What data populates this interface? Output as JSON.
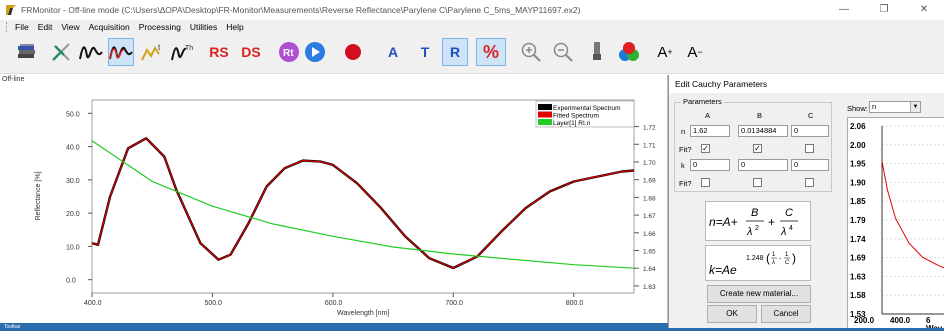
{
  "window": {
    "title": "FRMonitor - Off-line mode (C:\\Users\\ΔΟΡΑ\\Desktop\\FR-Monitor\\Measurements\\Reverse Reflectance\\Parylene C\\Parylene C_5ms_MAYP11697.ex2)",
    "minimize": "—",
    "maximize": "❐",
    "close": "✕"
  },
  "menu": [
    "File",
    "Edit",
    "View",
    "Acquisition",
    "Processing",
    "Utilities",
    "Help"
  ],
  "toolbar": {
    "text_buttons": {
      "rs": "RS",
      "ds": "DS",
      "rt": "Rt",
      "a": "A",
      "t": "T",
      "r": "R",
      "percent": "%",
      "a_plus": "A",
      "a_minus": "A",
      "plus": "+",
      "minus": "−"
    },
    "active": [
      "thickness-fit",
      "reflectance-mode",
      "percent-mode"
    ],
    "colors": {
      "blue_text": "#1f4fbf",
      "red_text": "#d22",
      "active_bg": "#cde4f7"
    }
  },
  "main_plot": {
    "mode_label": "Off-line",
    "chart_data": {
      "type": "line",
      "xlabel": "Wavelength [nm]",
      "ylabel": "Reflectance [%]",
      "xlim": [
        400,
        850
      ],
      "ylim": [
        -4,
        54
      ],
      "y2lim": [
        1.626,
        1.735
      ],
      "xticks": [
        "400.0",
        "500.0",
        "600.0",
        "700.0",
        "800.0"
      ],
      "yticks": [
        "0.0",
        "10.0",
        "20.0",
        "30.0",
        "40.0",
        "50.0"
      ],
      "y2ticks": [
        "1.63",
        "1.64",
        "1.65",
        "1.66",
        "1.67",
        "1.68",
        "1.69",
        "1.70",
        "1.71",
        "1.72"
      ],
      "legend_position": "top-right",
      "series": [
        {
          "name": "Experimental Spectrum",
          "color": "#000000",
          "axis": "left",
          "x": [
            400,
            405,
            415,
            430,
            445,
            460,
            470,
            490,
            505,
            515,
            530,
            545,
            560,
            575,
            590,
            600,
            620,
            640,
            660,
            680,
            700,
            720,
            740,
            760,
            780,
            800,
            820,
            840,
            850
          ],
          "y": [
            11,
            10.5,
            25,
            39.5,
            42.5,
            37,
            27,
            11,
            6,
            7.5,
            17,
            28,
            33.5,
            35.8,
            35.5,
            34.5,
            29,
            21.5,
            13,
            6.5,
            3.5,
            7,
            14.5,
            21.5,
            26.5,
            29.5,
            31,
            32.5,
            32.8
          ]
        },
        {
          "name": "Fitted Spectrum",
          "color": "#e00000",
          "axis": "left",
          "x": [
            400,
            405,
            415,
            430,
            445,
            460,
            470,
            490,
            505,
            515,
            530,
            545,
            560,
            575,
            590,
            600,
            620,
            640,
            660,
            680,
            700,
            720,
            740,
            760,
            780,
            800,
            820,
            840,
            850
          ],
          "y": [
            11,
            10.5,
            25,
            39.5,
            42.5,
            37,
            27,
            11,
            6,
            7.5,
            17,
            28,
            33.5,
            35.8,
            35.5,
            34.5,
            29,
            21.5,
            13,
            6.5,
            3.5,
            7,
            14.5,
            21.5,
            26.5,
            29.5,
            31,
            32.5,
            32.8
          ]
        },
        {
          "name": "Layer[1] RI.n",
          "color": "#22cc22",
          "axis": "right",
          "x": [
            400,
            450,
            500,
            550,
            600,
            650,
            700,
            750,
            800,
            850
          ],
          "y": [
            1.712,
            1.689,
            1.675,
            1.665,
            1.658,
            1.652,
            1.648,
            1.645,
            1.642,
            1.64
          ]
        }
      ]
    }
  },
  "dialog": {
    "title": "Edit Cauchy Parameters",
    "parameters_label": "Parameters",
    "col_headers": [
      "A",
      "B",
      "C"
    ],
    "row_labels": {
      "n": "n",
      "fit": "Fit?",
      "k": "k"
    },
    "n_values": [
      "1.62",
      "0.0134884",
      "0"
    ],
    "n_fit": [
      true,
      true,
      false
    ],
    "k_values": [
      "0",
      "0",
      "0"
    ],
    "k_fit": [
      false,
      false,
      false
    ],
    "formula_n": {
      "lhs": "n=A+",
      "B": "B",
      "C": "C",
      "plus": "+",
      "lambda": "λ",
      "exp2": "2",
      "exp4": "4"
    },
    "formula_k": {
      "lhs": "k=Ae",
      "exponent": "1.248",
      "one": "1",
      "lambda": "λ",
      "C": "C",
      "minus": "-",
      "paren_open": "(",
      "paren_close": ")"
    },
    "create_button": "Create new material...",
    "ok_button": "OK",
    "cancel_button": "Cancel",
    "show_label": "Show:",
    "show_value": "n",
    "mini_chart": {
      "chart_data": {
        "type": "line",
        "xlabel": "Wav",
        "yticks": [
          "2.06",
          "2.00",
          "1.95",
          "1.90",
          "1.85",
          "1.79",
          "1.74",
          "1.69",
          "1.63",
          "1.58",
          "1.53"
        ],
        "xticks": [
          "200.0",
          "400.0",
          "6"
        ],
        "ylim": [
          1.53,
          2.06
        ],
        "series": [
          {
            "color": "#e00000",
            "x": [
              200,
              220,
              250,
              300,
              350,
              400,
              430
            ],
            "y": [
              1.96,
              1.88,
              1.8,
              1.73,
              1.69,
              1.67,
              1.66
            ]
          }
        ]
      }
    }
  },
  "status": {
    "toolbar_label": "Toolbar"
  }
}
